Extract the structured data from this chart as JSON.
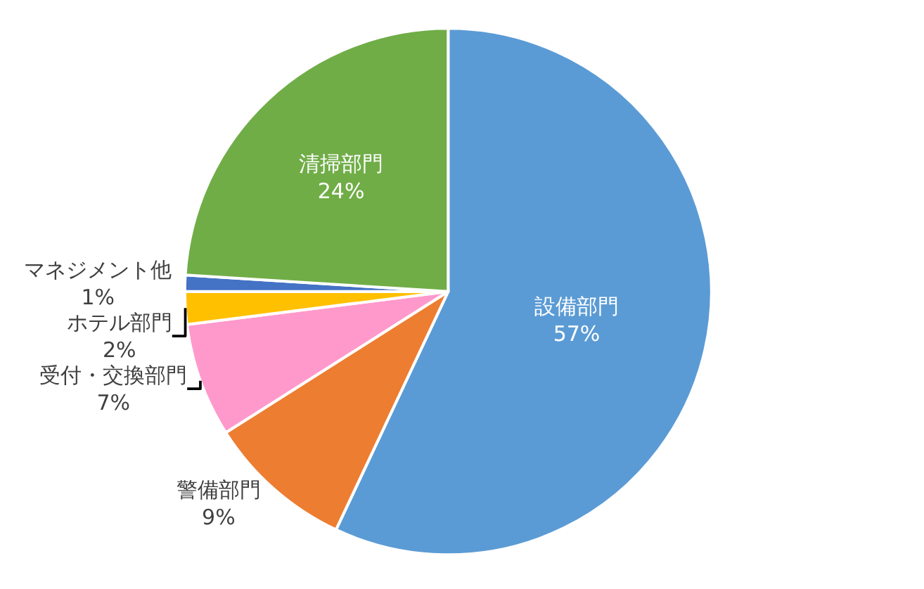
{
  "chart_data": {
    "type": "pie",
    "categories": [
      "設備部門",
      "警備部門",
      "受付・交換部門",
      "ホテル部門",
      "マネジメント他",
      "清掃部門"
    ],
    "values": [
      57,
      9,
      7,
      2,
      1,
      24
    ],
    "value_labels": [
      "57%",
      "9%",
      "7%",
      "2%",
      "1%",
      "24%"
    ],
    "colors": [
      "#5b9bd5",
      "#ed7d31",
      "#ff99cc",
      "#ffc000",
      "#4472c4",
      "#70ad47"
    ],
    "legend": false
  }
}
